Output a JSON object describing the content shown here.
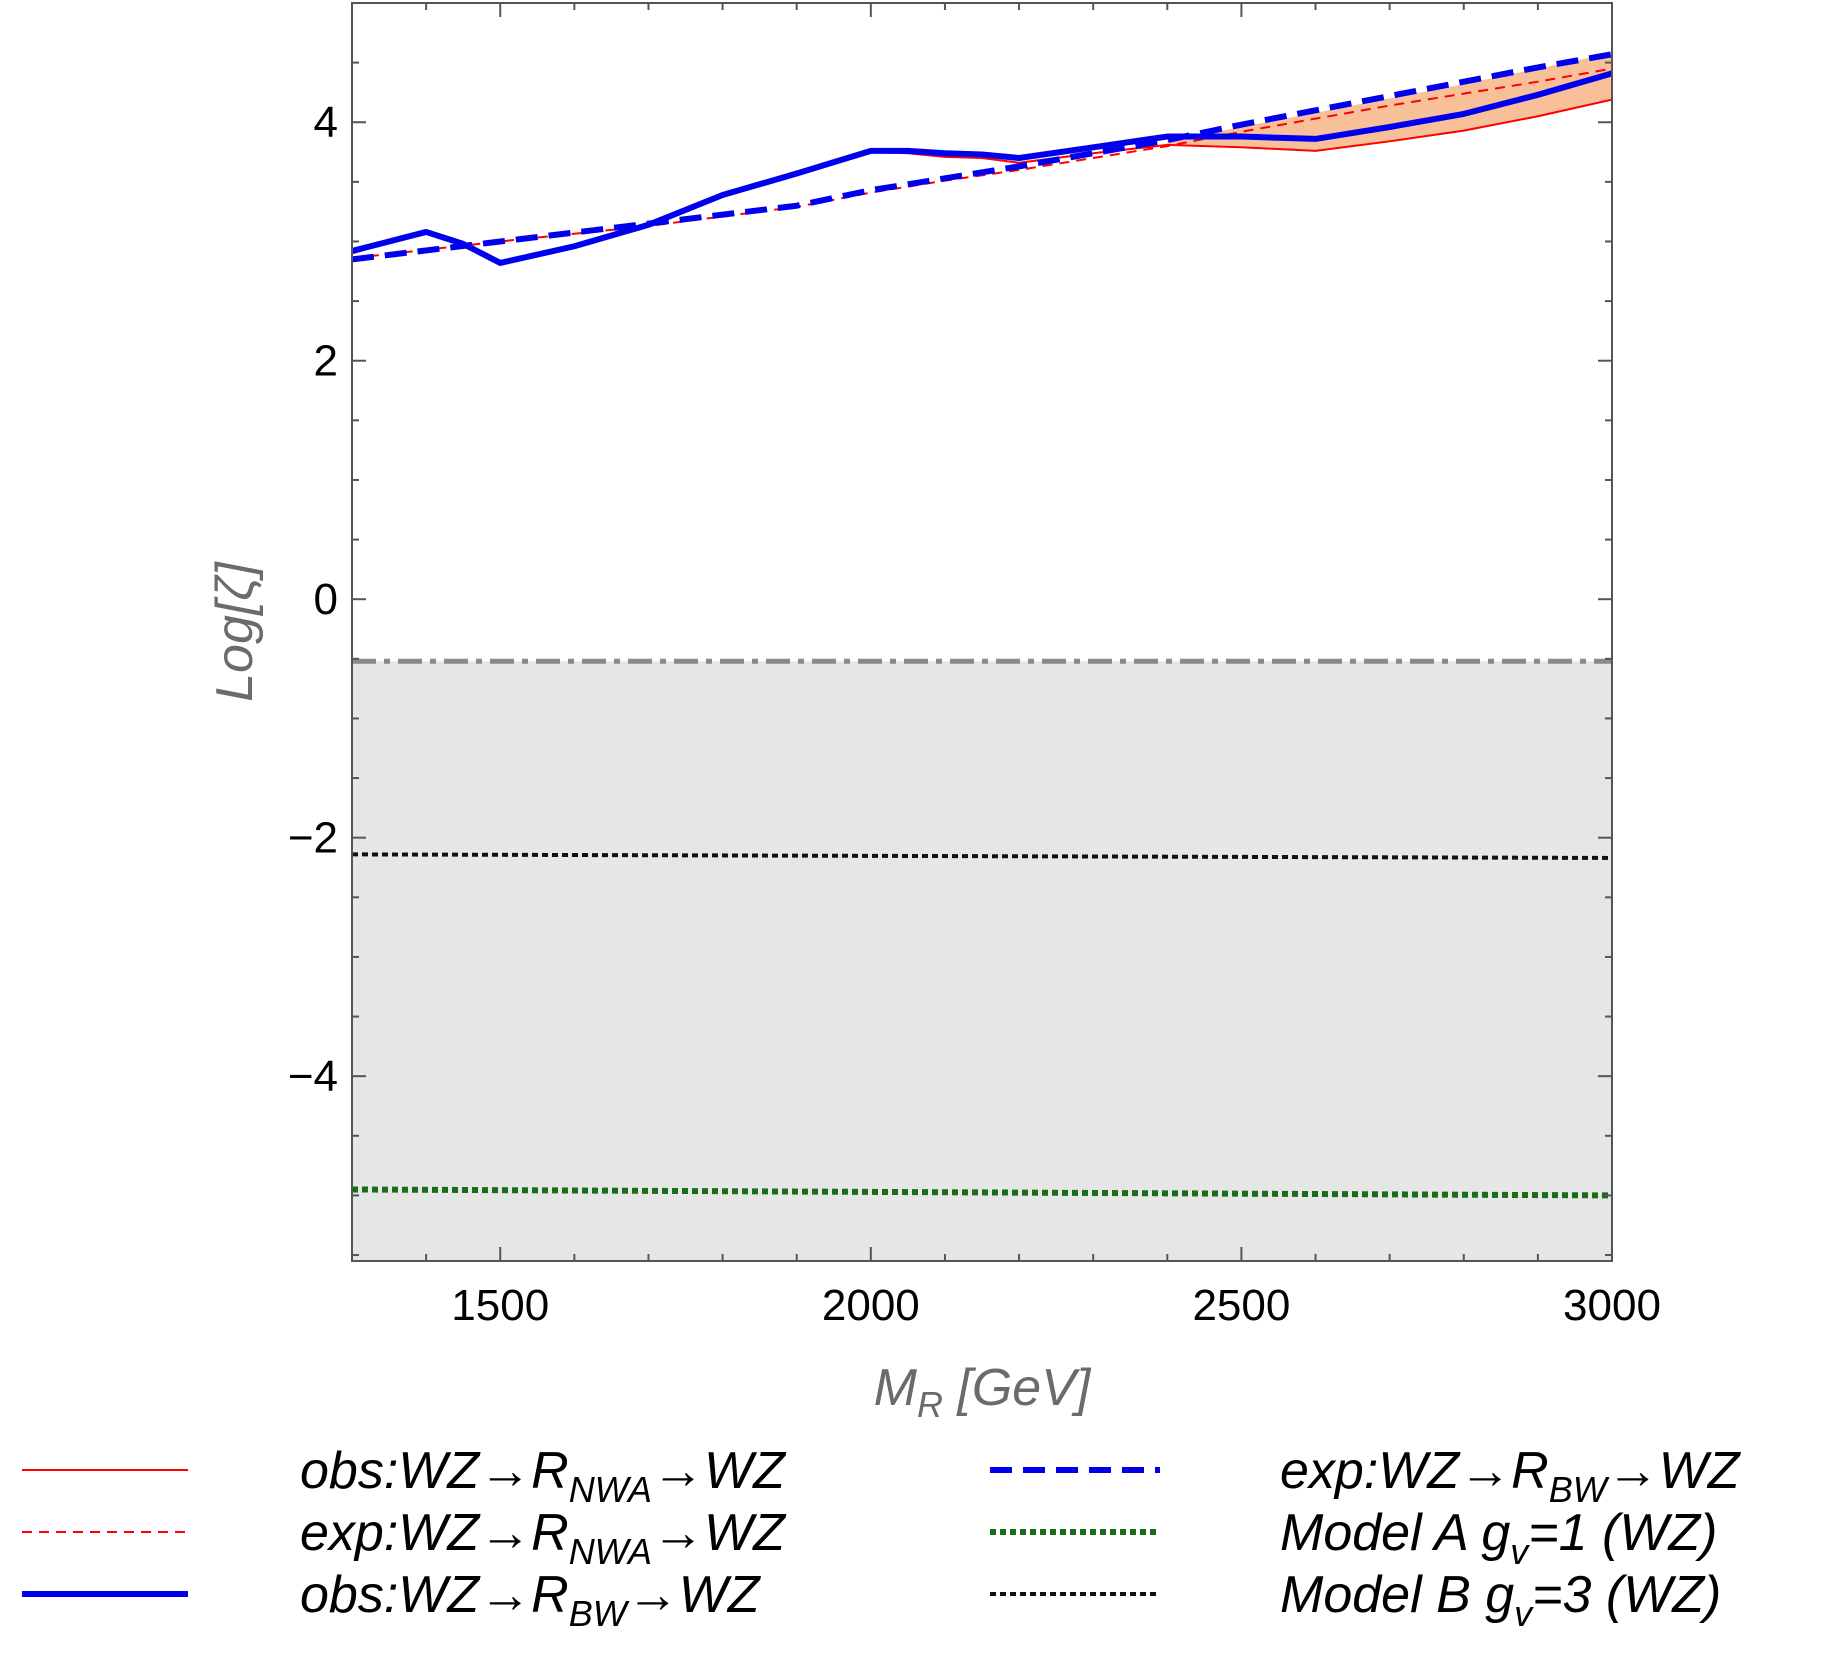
{
  "chart_data": {
    "type": "line",
    "title": "",
    "xlabel": {
      "main": "M",
      "sub": "R",
      "unit": " [GeV]"
    },
    "ylabel": "Log[ζ]",
    "xlim": [
      1300,
      3000
    ],
    "ylim": [
      -5.55,
      5.0
    ],
    "xticks": [
      1500,
      2000,
      2500,
      3000
    ],
    "xtick_labels": [
      "1500",
      "2000",
      "2500",
      "3000"
    ],
    "yticks": [
      -4,
      -2,
      0,
      2,
      4
    ],
    "ytick_labels": [
      "−4",
      "−2",
      "0",
      "2",
      "4"
    ],
    "excluded_region": {
      "ymin": -5.55,
      "ymax": -0.52,
      "color": "#e6e6e6"
    },
    "boundary_line": {
      "y": -0.52,
      "color": "#8a8a8a",
      "style": "dashdot"
    },
    "band": {
      "color": "#f8c098",
      "x": [
        2400,
        2500,
        2600,
        2700,
        2800,
        2900,
        3000
      ],
      "lower": [
        3.82,
        3.8,
        3.76,
        3.84,
        3.93,
        4.05,
        4.19
      ],
      "upper": [
        3.84,
        3.96,
        4.08,
        4.2,
        4.32,
        4.45,
        4.58
      ]
    },
    "series": [
      {
        "name": "obs_nwa",
        "color": "#ff0000",
        "width": 2,
        "dash": "",
        "x": [
          1300,
          1400,
          1450,
          1500,
          1600,
          1700,
          1800,
          1900,
          2000,
          2050,
          2100,
          2150,
          2200,
          2300,
          2400,
          2500,
          2600,
          2700,
          2800,
          2900,
          3000
        ],
        "y": [
          2.9,
          3.08,
          2.96,
          2.82,
          2.96,
          3.14,
          3.39,
          3.57,
          3.75,
          3.74,
          3.71,
          3.7,
          3.66,
          3.74,
          3.81,
          3.79,
          3.76,
          3.84,
          3.93,
          4.05,
          4.19
        ]
      },
      {
        "name": "exp_nwa",
        "color": "#ff0000",
        "width": 2,
        "dash": "10,7",
        "x": [
          1300,
          1500,
          1700,
          1900,
          2000,
          2100,
          2200,
          2300,
          2400,
          2500,
          2600,
          2700,
          2800,
          2900,
          3000
        ],
        "y": [
          2.86,
          3.0,
          3.13,
          3.29,
          3.41,
          3.51,
          3.6,
          3.7,
          3.8,
          3.92,
          4.03,
          4.14,
          4.24,
          4.34,
          4.45
        ]
      },
      {
        "name": "obs_bw",
        "color": "#0000ee",
        "width": 6,
        "dash": "",
        "x": [
          1300,
          1400,
          1450,
          1500,
          1600,
          1700,
          1800,
          1900,
          2000,
          2050,
          2100,
          2150,
          2200,
          2300,
          2400,
          2500,
          2600,
          2700,
          2800,
          2900,
          3000
        ],
        "y": [
          2.92,
          3.08,
          2.98,
          2.82,
          2.96,
          3.14,
          3.39,
          3.57,
          3.76,
          3.76,
          3.74,
          3.73,
          3.7,
          3.79,
          3.88,
          3.88,
          3.86,
          3.96,
          4.07,
          4.23,
          4.41
        ]
      },
      {
        "name": "exp_bw",
        "color": "#0000ee",
        "width": 6,
        "dash": "22,11",
        "x": [
          1300,
          1500,
          1700,
          1900,
          2000,
          2100,
          2200,
          2300,
          2400,
          2500,
          2600,
          2700,
          2800,
          2900,
          3000
        ],
        "y": [
          2.85,
          3.0,
          3.15,
          3.3,
          3.43,
          3.53,
          3.63,
          3.74,
          3.85,
          3.98,
          4.1,
          4.22,
          4.34,
          4.46,
          4.57
        ]
      },
      {
        "name": "model_a",
        "color": "#1a6b1a",
        "width": 6,
        "dash": "6,4",
        "x": [
          1300,
          3000
        ],
        "y": [
          -4.95,
          -5.0
        ]
      },
      {
        "name": "model_b",
        "color": "#111111",
        "width": 4,
        "dash": "6,4",
        "x": [
          1300,
          3000
        ],
        "y": [
          -2.14,
          -2.17
        ]
      }
    ],
    "legend": {
      "placement": "bottom",
      "entries": [
        {
          "series": "obs_nwa",
          "prefix": "obs:WZ→R",
          "sub": "NWA",
          "suffix": "→WZ"
        },
        {
          "series": "exp_nwa",
          "prefix": "exp:WZ→R",
          "sub": "NWA",
          "suffix": "→WZ"
        },
        {
          "series": "obs_bw",
          "prefix": "obs:WZ→R",
          "sub": "BW",
          "suffix": "→WZ"
        },
        {
          "series": "exp_bw",
          "prefix": "exp:WZ→R",
          "sub": "BW",
          "suffix": "→WZ"
        },
        {
          "series": "model_a",
          "prefix": "Model A g",
          "sub": "v",
          "suffix": "=1 (WZ)"
        },
        {
          "series": "model_b",
          "prefix": "Model B g",
          "sub": "v",
          "suffix": "=3 (WZ)"
        }
      ]
    }
  }
}
